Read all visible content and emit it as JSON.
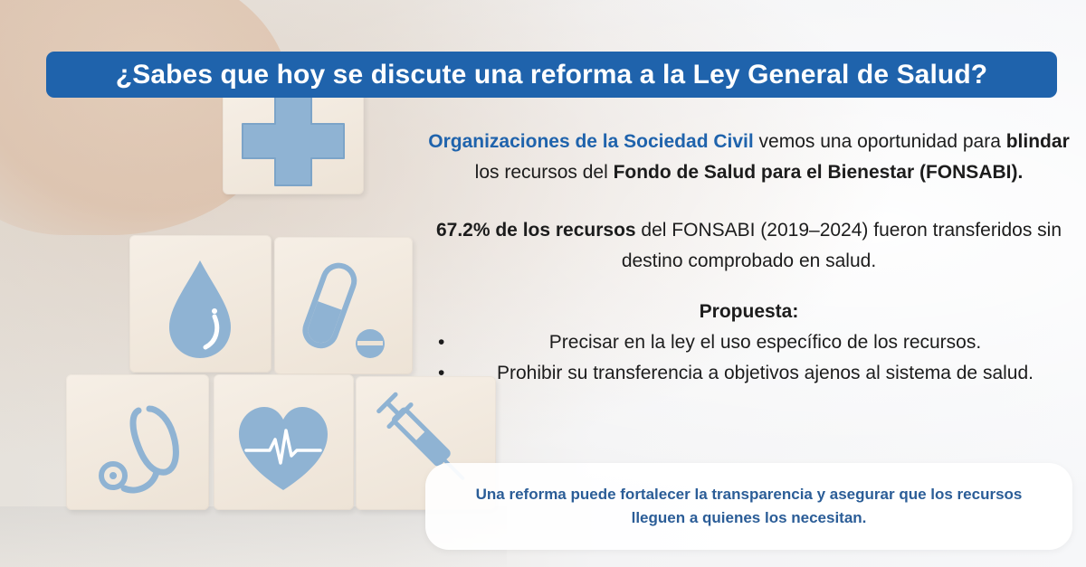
{
  "title": "¿Sabes que hoy se discute una reforma a la Ley General de Salud?",
  "intro": {
    "org": "Organizaciones de la Sociedad Civil",
    "text1": " vemos una oportunidad para ",
    "blindar": "blindar",
    "text2": " los recursos del ",
    "fondo": "Fondo de Salud para el Bienestar (FONSABI)."
  },
  "stat": {
    "bold": "67.2% de los recursos",
    "text": " del FONSABI (2019–2024) fueron transferidos sin destino comprobado en salud."
  },
  "proposal": {
    "heading": "Propuesta:",
    "bullet_glyph": "•",
    "items": [
      "Precisar en la ley el uso específico de los recursos.",
      "Prohibir su transferencia a objetivos ajenos al sistema de salud."
    ]
  },
  "callout": "Una reforma puede fortalecer la transparencia y asegurar que los recursos lleguen a quienes los necesitan.",
  "icons": [
    "medical-cross-icon",
    "water-drop-icon",
    "pill-capsule-icon",
    "stethoscope-icon",
    "heart-pulse-icon",
    "syringe-icon"
  ],
  "colors": {
    "title_bar": "#1f63ac",
    "accent_text": "#1f63ac",
    "callout_text": "#2b5d97",
    "icon_blue": "#8fb3d3"
  }
}
